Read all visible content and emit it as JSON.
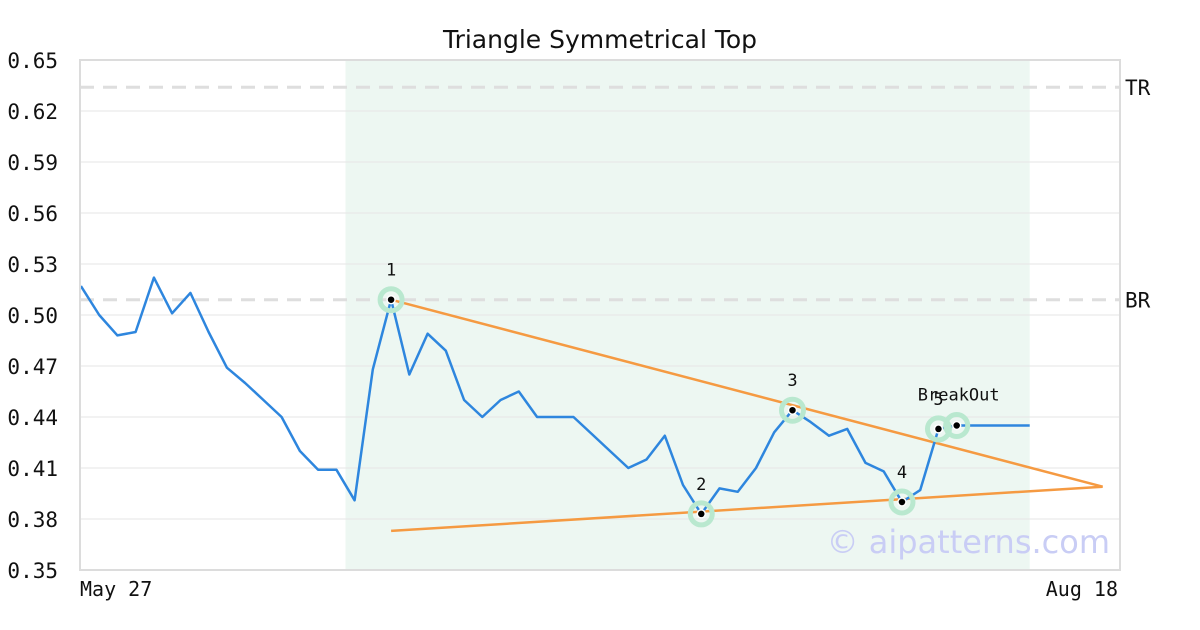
{
  "chart_data": {
    "type": "line",
    "title": "Triangle Symmetrical Top",
    "ylim": [
      0.35,
      0.65
    ],
    "y_ticks": [
      "0.65",
      "0.62",
      "0.59",
      "0.56",
      "0.53",
      "0.50",
      "0.47",
      "0.44",
      "0.41",
      "0.38",
      "0.35"
    ],
    "x_range_labels": {
      "start": "May 27",
      "end": "Aug 18"
    },
    "grid": "horizontal",
    "pattern_region": {
      "start_index": 15,
      "end_index": 52
    },
    "levels": [
      {
        "label": "TR",
        "value": 0.634
      },
      {
        "label": "BR",
        "value": 0.509
      }
    ],
    "series": [
      {
        "name": "",
        "color": "#2e86de",
        "x": [
          0,
          1,
          2,
          3,
          4,
          5,
          6,
          7,
          8,
          9,
          10,
          11,
          12,
          13,
          14,
          15,
          16,
          17,
          18,
          19,
          20,
          21,
          22,
          23,
          24,
          25,
          26,
          27,
          28,
          29,
          30,
          31,
          32,
          33,
          34,
          35,
          36,
          37,
          38,
          39,
          40,
          41,
          42,
          43,
          44,
          45,
          46,
          47,
          48,
          49,
          50,
          51,
          52
        ],
        "values": [
          0.517,
          0.5,
          0.488,
          0.49,
          0.522,
          0.501,
          0.513,
          0.49,
          0.469,
          0.46,
          0.45,
          0.44,
          0.42,
          0.409,
          0.409,
          0.391,
          0.468,
          0.509,
          0.465,
          0.489,
          0.479,
          0.45,
          0.44,
          0.45,
          0.455,
          0.44,
          0.44,
          0.44,
          0.43,
          0.42,
          0.41,
          0.415,
          0.429,
          0.4,
          0.383,
          0.398,
          0.396,
          0.41,
          0.431,
          0.444,
          0.437,
          0.429,
          0.433,
          0.413,
          0.408,
          0.39,
          0.397,
          0.433,
          0.435,
          0.435,
          0.435,
          0.435,
          0.435
        ]
      }
    ],
    "trendlines": [
      {
        "name": "upper",
        "color": "#f59a42",
        "from": {
          "x": 17,
          "y": 0.509
        },
        "to": {
          "x": 56,
          "y": 0.399
        }
      },
      {
        "name": "lower",
        "color": "#f59a42",
        "from": {
          "x": 17,
          "y": 0.373
        },
        "to": {
          "x": 56,
          "y": 0.399
        }
      }
    ],
    "pattern_points": [
      {
        "label": "1",
        "x": 17,
        "y": 0.509
      },
      {
        "label": "2",
        "x": 34,
        "y": 0.383
      },
      {
        "label": "3",
        "x": 39,
        "y": 0.444
      },
      {
        "label": "4",
        "x": 45,
        "y": 0.39
      },
      {
        "label": "5",
        "x": 47,
        "y": 0.433
      },
      {
        "label": "",
        "x": 48,
        "y": 0.435
      }
    ],
    "annotations": [
      {
        "text": "BreakOut",
        "x": 48,
        "y": 0.435
      }
    ],
    "watermark": "© aipatterns.com"
  }
}
